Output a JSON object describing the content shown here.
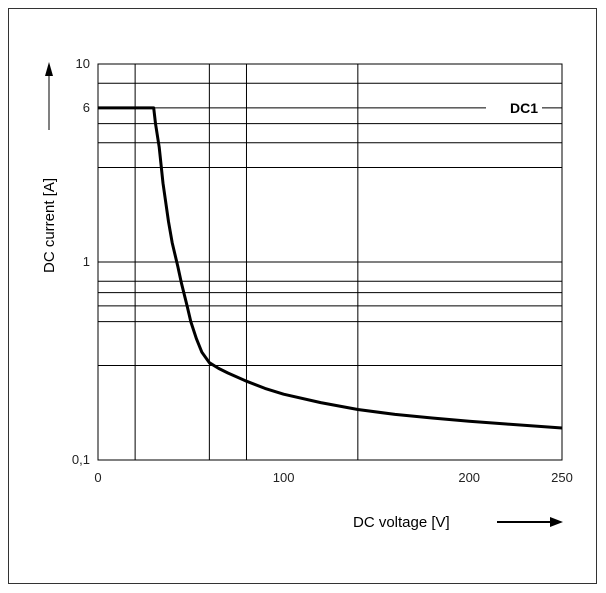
{
  "chart_data": {
    "type": "line",
    "title": "",
    "xlabel": "DC voltage [V]",
    "ylabel": "DC current [A]",
    "xlim": [
      0,
      250
    ],
    "ylim": [
      0.1,
      10
    ],
    "y_scale": "log",
    "grid": true,
    "x_ticks": [
      {
        "value": 0,
        "label": "0"
      },
      {
        "value": 100,
        "label": "100"
      },
      {
        "value": 200,
        "label": "200"
      },
      {
        "value": 250,
        "label": "250"
      }
    ],
    "y_ticks": [
      {
        "value": 0.1,
        "label": "0,1"
      },
      {
        "value": 1,
        "label": "1"
      },
      {
        "value": 6,
        "label": "6"
      },
      {
        "value": 10,
        "label": "10"
      }
    ],
    "x_gridlines": [
      20,
      60,
      80,
      140
    ],
    "y_gridlines": [
      0.3,
      0.5,
      0.6,
      0.7,
      0.8,
      3,
      4,
      5,
      8
    ],
    "series": [
      {
        "name": "DC1",
        "color": "#000000",
        "x": [
          0,
          30,
          31,
          33,
          35,
          38,
          40,
          43,
          45,
          48,
          50,
          53,
          56,
          60,
          65,
          70,
          80,
          90,
          100,
          120,
          140,
          160,
          180,
          200,
          220,
          250
        ],
        "y": [
          6,
          6,
          5.0,
          3.8,
          2.5,
          1.6,
          1.25,
          0.95,
          0.78,
          0.6,
          0.5,
          0.41,
          0.35,
          0.31,
          0.29,
          0.275,
          0.25,
          0.23,
          0.215,
          0.195,
          0.18,
          0.17,
          0.163,
          0.157,
          0.152,
          0.145
        ]
      }
    ]
  }
}
